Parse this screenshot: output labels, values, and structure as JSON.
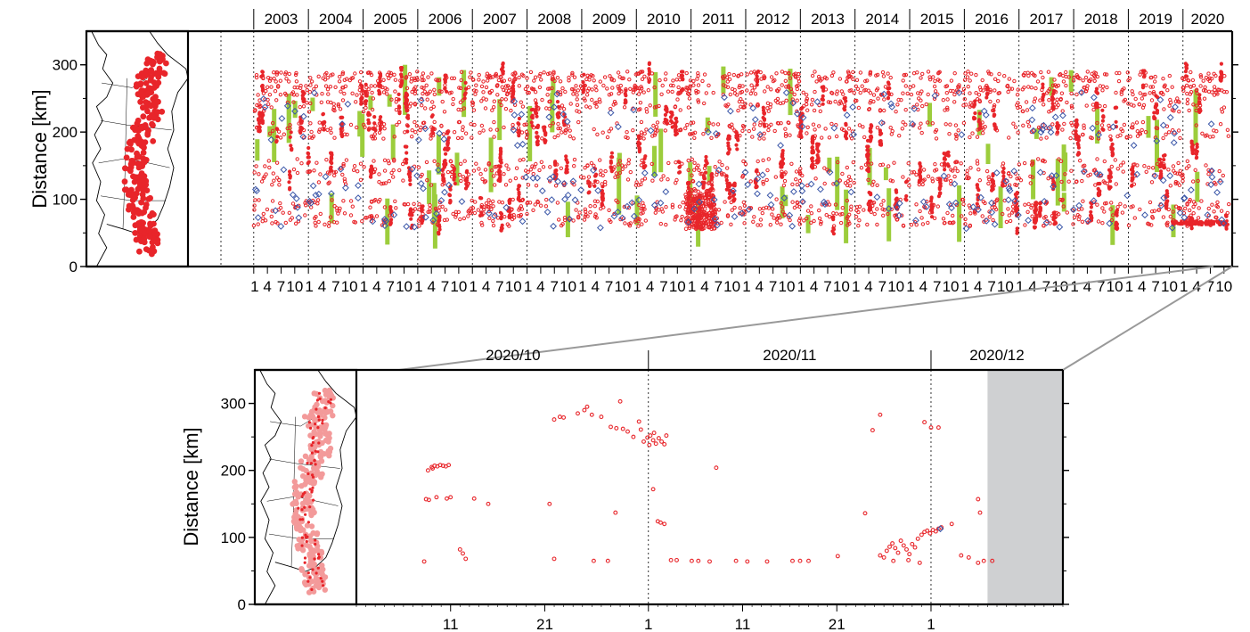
{
  "chart_data": [
    {
      "type": "scatter",
      "panel": "overview",
      "ylabel": "Distance [km]",
      "ylim": [
        0,
        350
      ],
      "yticks": [
        0,
        100,
        200,
        300
      ],
      "xlim_years": [
        2002.4,
        2020.9
      ],
      "year_labels": [
        "2003",
        "2004",
        "2005",
        "2006",
        "2007",
        "2008",
        "2009",
        "2010",
        "2011",
        "2012",
        "2013",
        "2014",
        "2015",
        "2016",
        "2017",
        "2018",
        "2019",
        "2020"
      ],
      "month_tick_labels": [
        "1",
        "4",
        "7",
        "10"
      ],
      "legend": "none",
      "colors": {
        "events": "#e8252a",
        "diamonds": "#3a56a8",
        "bars": "#9ccd3c"
      },
      "series": [
        {
          "marker": "red-circle",
          "description_of_distribution": "dense clusters at ~60-100, 120-160, 190-220, 230-290 km across all years"
        },
        {
          "marker": "blue-diamond",
          "approx_distance_range": [
            50,
            260
          ]
        },
        {
          "marker": "green-bar",
          "approx_distance_range": [
            30,
            290
          ]
        }
      ],
      "cluster_bands": [
        {
          "y": [
            60,
            100
          ],
          "density": 1.0
        },
        {
          "y": [
            120,
            160
          ],
          "density": 0.8
        },
        {
          "y": [
            190,
            215
          ],
          "density": 0.6
        },
        {
          "y": [
            230,
            250
          ],
          "density": 0.5
        },
        {
          "y": [
            255,
            270
          ],
          "density": 0.7
        },
        {
          "y": [
            275,
            290
          ],
          "density": 0.6
        }
      ]
    },
    {
      "type": "scatter",
      "panel": "zoom",
      "ylabel": "Distance [km]",
      "ylim": [
        0,
        350
      ],
      "yticks": [
        0,
        100,
        200,
        300
      ],
      "month_labels": [
        "2020/10",
        "2020/11",
        "2020/12"
      ],
      "day_tick_labels": [
        "11",
        "21",
        "1",
        "11",
        "21",
        "1"
      ],
      "xlim_days": [
        0,
        75
      ],
      "legend": "none",
      "grey_region_days": [
        67,
        75
      ],
      "points": [
        [
          8.0,
          205
        ],
        [
          8.3,
          207
        ],
        [
          8.6,
          206
        ],
        [
          8.9,
          208
        ],
        [
          9.2,
          207
        ],
        [
          9.5,
          206
        ],
        [
          9.8,
          208
        ],
        [
          7.6,
          200
        ],
        [
          8.1,
          203
        ],
        [
          7.4,
          157
        ],
        [
          7.7,
          156
        ],
        [
          8.5,
          160
        ],
        [
          9.6,
          158
        ],
        [
          10.0,
          160
        ],
        [
          11.0,
          82
        ],
        [
          11.3,
          76
        ],
        [
          11.6,
          68
        ],
        [
          7.2,
          64
        ],
        [
          12.5,
          158
        ],
        [
          14.0,
          150
        ],
        [
          21.0,
          276
        ],
        [
          21.6,
          280
        ],
        [
          22.0,
          279
        ],
        [
          23.5,
          285
        ],
        [
          24.2,
          290
        ],
        [
          25.0,
          283
        ],
        [
          26.0,
          280
        ],
        [
          24.5,
          295
        ],
        [
          27.0,
          265
        ],
        [
          27.6,
          263
        ],
        [
          28.3,
          262
        ],
        [
          28.8,
          258
        ],
        [
          29.4,
          250
        ],
        [
          28.0,
          303
        ],
        [
          30.0,
          273
        ],
        [
          30.5,
          243
        ],
        [
          30.9,
          249
        ],
        [
          31.2,
          252
        ],
        [
          31.5,
          245
        ],
        [
          31.8,
          240
        ],
        [
          32.1,
          248
        ],
        [
          32.4,
          243
        ],
        [
          32.7,
          239
        ],
        [
          31.1,
          238
        ],
        [
          32.9,
          252
        ],
        [
          31.6,
          256
        ],
        [
          30.2,
          261
        ],
        [
          32.3,
          122
        ],
        [
          32.7,
          120
        ],
        [
          32.0,
          124
        ],
        [
          31.5,
          172
        ],
        [
          27.5,
          137
        ],
        [
          20.5,
          150
        ],
        [
          21.0,
          68
        ],
        [
          25.2,
          65
        ],
        [
          26.7,
          65
        ],
        [
          33.4,
          66
        ],
        [
          34.0,
          66
        ],
        [
          35.6,
          65
        ],
        [
          36.3,
          65
        ],
        [
          37.5,
          64
        ],
        [
          38.2,
          204
        ],
        [
          40.3,
          65
        ],
        [
          41.5,
          64
        ],
        [
          43.6,
          64
        ],
        [
          46.3,
          65
        ],
        [
          47.1,
          65
        ],
        [
          48.0,
          65
        ],
        [
          51.1,
          72
        ],
        [
          54.0,
          136
        ],
        [
          54.8,
          260
        ],
        [
          55.6,
          283
        ],
        [
          60.3,
          272
        ],
        [
          61.0,
          264
        ],
        [
          61.8,
          264
        ],
        [
          56.0,
          70
        ],
        [
          56.3,
          80
        ],
        [
          56.6,
          86
        ],
        [
          56.9,
          91
        ],
        [
          57.2,
          84
        ],
        [
          57.5,
          77
        ],
        [
          57.8,
          95
        ],
        [
          58.1,
          88
        ],
        [
          58.4,
          82
        ],
        [
          58.7,
          75
        ],
        [
          59.0,
          90
        ],
        [
          59.3,
          85
        ],
        [
          59.6,
          98
        ],
        [
          60.0,
          104
        ],
        [
          60.3,
          108
        ],
        [
          60.6,
          110
        ],
        [
          60.9,
          106
        ],
        [
          61.2,
          111
        ],
        [
          61.5,
          109
        ],
        [
          61.8,
          113
        ],
        [
          62.1,
          115
        ],
        [
          55.6,
          73
        ],
        [
          57.0,
          65
        ],
        [
          58.6,
          66
        ],
        [
          59.8,
          62
        ],
        [
          63.2,
          120
        ],
        [
          64.2,
          73
        ],
        [
          65.0,
          70
        ],
        [
          66.0,
          62
        ],
        [
          66.0,
          157
        ],
        [
          66.2,
          137
        ],
        [
          66.6,
          65
        ],
        [
          67.5,
          65
        ]
      ],
      "diamond_points": [
        [
          62.0,
          113
        ]
      ]
    }
  ]
}
